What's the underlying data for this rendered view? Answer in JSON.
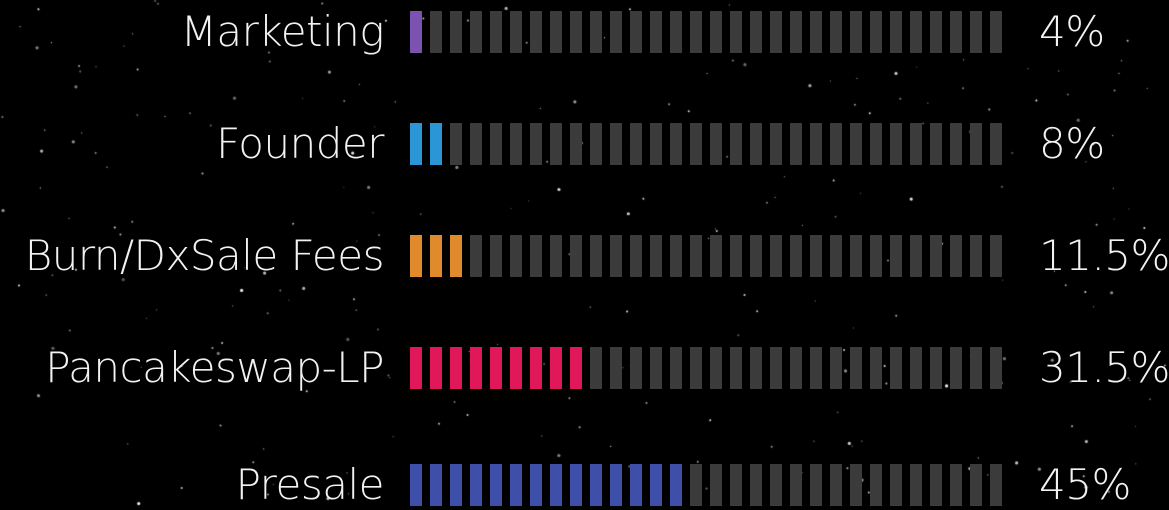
{
  "chart_data": {
    "type": "bar",
    "orientation": "horizontal",
    "style": "segmented-meter",
    "xlim": [
      0,
      100
    ],
    "unit": "%",
    "categories": [
      "Marketing",
      "Founder",
      "Burn/DxSale Fees",
      "Pancakeswap-LP",
      "Presale"
    ],
    "values": [
      4,
      8,
      11.5,
      31.5,
      45
    ],
    "value_labels": [
      "4%",
      "8%",
      "11.5%",
      "31.5%",
      "45%"
    ],
    "colors": [
      "#7b52b0",
      "#2b96d6",
      "#e08a2c",
      "#e0185a",
      "#3d4fa8"
    ],
    "track_color": "#3b3b3b",
    "background": "#000000"
  }
}
